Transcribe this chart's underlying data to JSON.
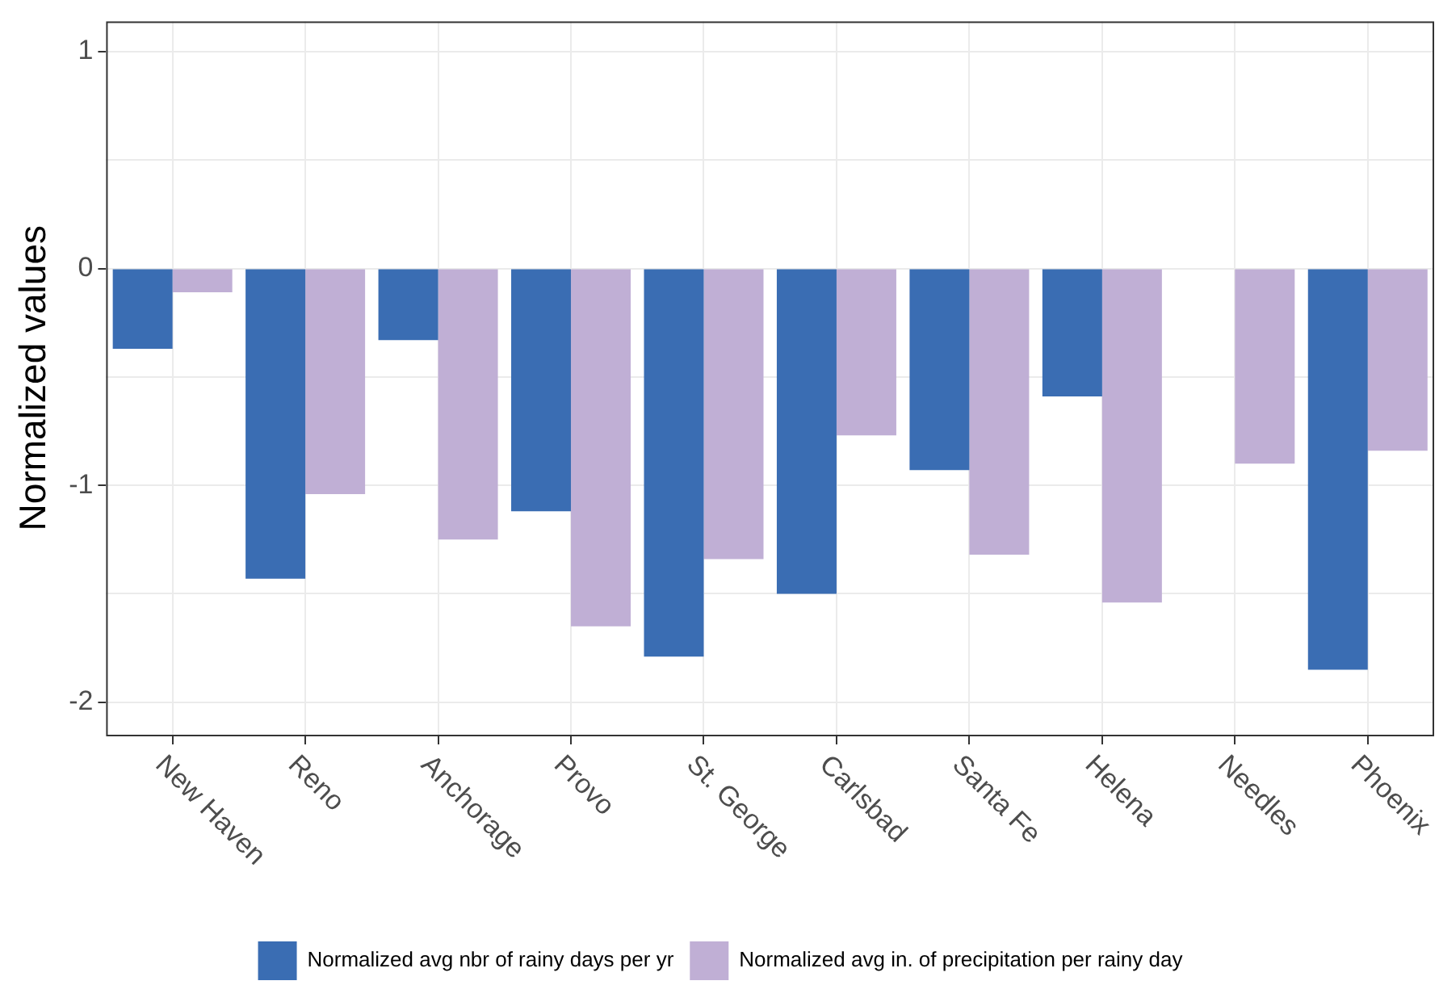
{
  "chart_data": {
    "type": "bar",
    "ylabel": "Normalized values",
    "categories": [
      "New Haven",
      "Reno",
      "Anchorage",
      "Provo",
      "St. George",
      "Carlsbad",
      "Santa Fe",
      "Helena",
      "Needles",
      "Phoenix"
    ],
    "series": [
      {
        "name": "Normalized avg nbr of rainy days per yr",
        "color": "#3a6db3",
        "values": [
          -0.37,
          -1.43,
          -0.33,
          -1.12,
          -1.79,
          -1.5,
          -0.93,
          -0.59,
          null,
          -1.85
        ]
      },
      {
        "name": "Normalized avg in. of precipitation per rainy day",
        "color": "#c0afd5",
        "values": [
          -0.11,
          -1.04,
          -1.25,
          -1.65,
          -1.34,
          -0.77,
          -1.32,
          -1.54,
          -0.9,
          -0.84
        ]
      }
    ],
    "ylim": [
      -2.15,
      1.14
    ],
    "yticks": [
      -2,
      {
        "value": -1.5,
        "label": null
      },
      -1,
      {
        "value": -0.5,
        "label": null
      },
      0,
      {
        "value": 0.5,
        "label": null
      },
      1
    ],
    "grid": true,
    "legend": "bottom"
  }
}
